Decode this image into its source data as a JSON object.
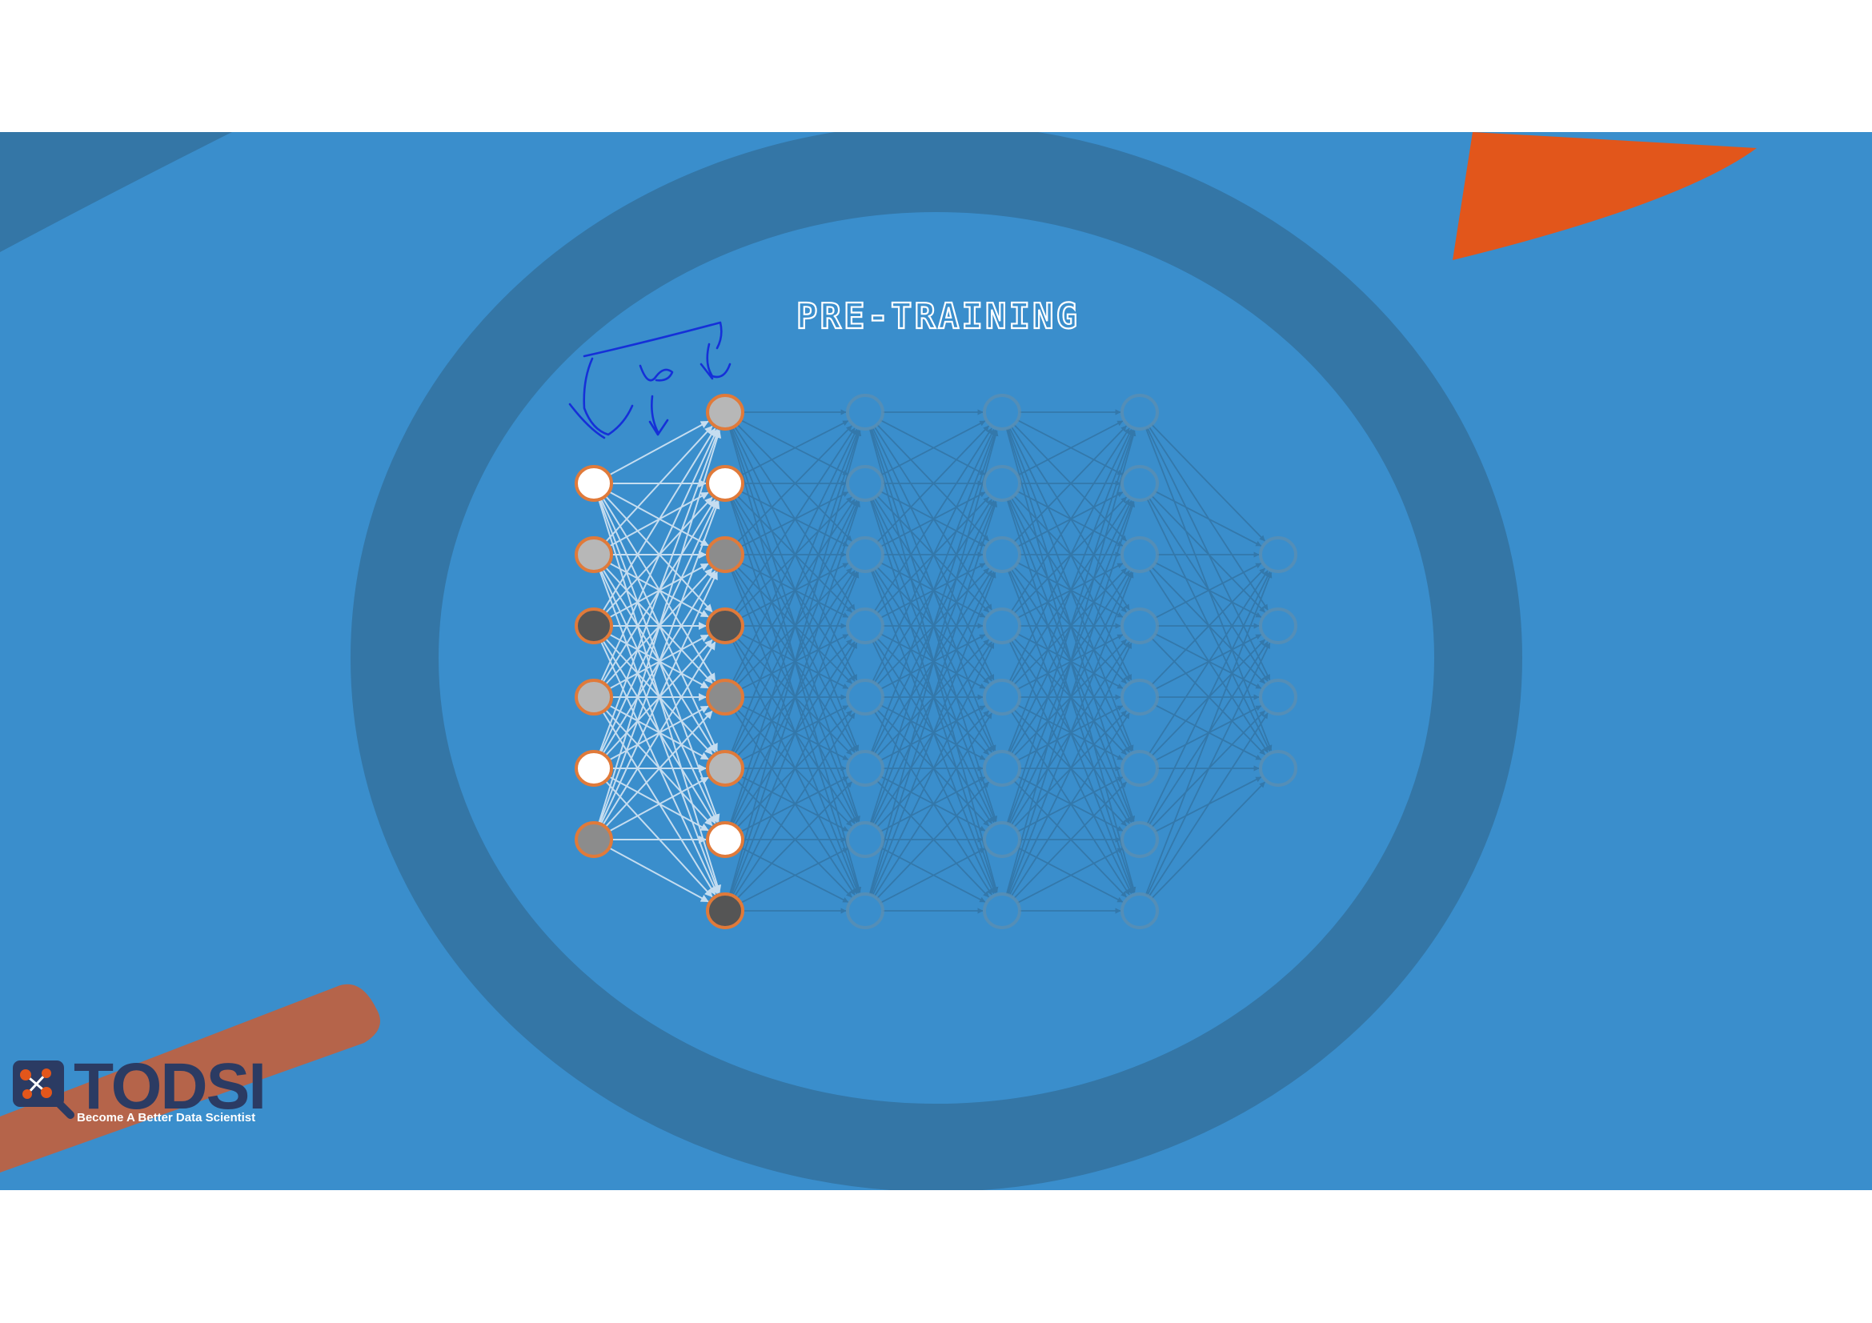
{
  "slide": {
    "title": "PRE-TRAINING"
  },
  "network": {
    "active_layers": [
      {
        "layer": "input",
        "nodes": [
          "white",
          "gray",
          "dark",
          "gray",
          "white",
          "mid"
        ]
      },
      {
        "layer": "hidden-1",
        "nodes": [
          "gray",
          "white",
          "mid",
          "dark",
          "mid",
          "gray",
          "white",
          "dark"
        ]
      }
    ],
    "inactive_layers": [
      {
        "layer": "hidden-2",
        "node_count": 8
      },
      {
        "layer": "hidden-3",
        "node_count": 8
      },
      {
        "layer": "hidden-4",
        "node_count": 8
      },
      {
        "layer": "output",
        "node_count": 4
      }
    ]
  },
  "logo": {
    "name": "TODSI",
    "tagline": "Become A Better Data Scientist"
  },
  "colors": {
    "background": "#3a8ecc",
    "ring": "#3476a6",
    "accent_orange": "#e2561b",
    "node_stroke": "#e07a3a",
    "node_white": "#ffffff",
    "node_gray": "#b7b7b7",
    "node_mid": "#8c8c8c",
    "node_dark": "#555555",
    "annotation_ink": "#1530d8"
  }
}
